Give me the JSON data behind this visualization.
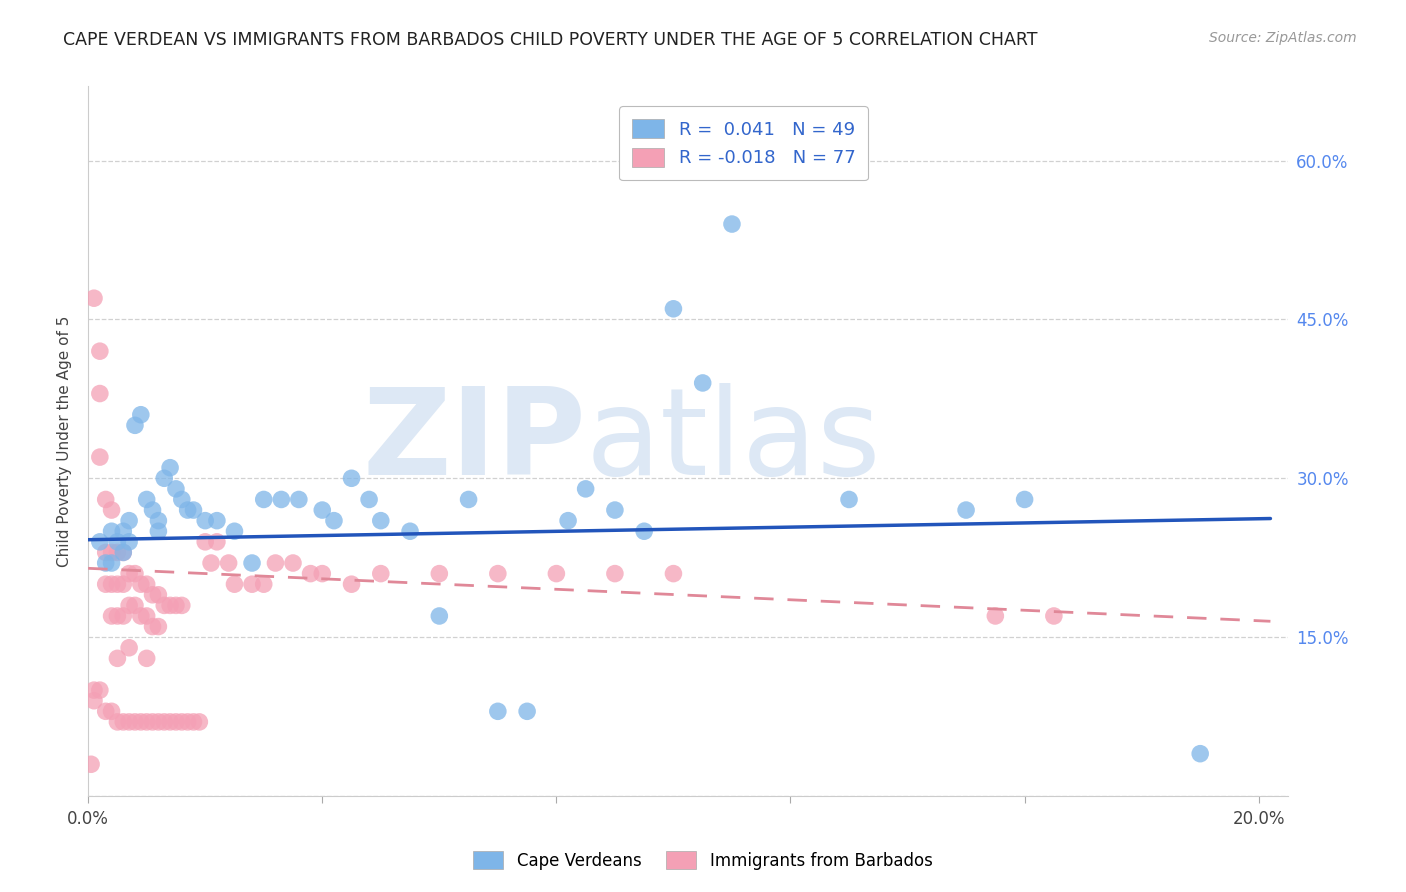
{
  "title": "CAPE VERDEAN VS IMMIGRANTS FROM BARBADOS CHILD POVERTY UNDER THE AGE OF 5 CORRELATION CHART",
  "source": "Source: ZipAtlas.com",
  "ylabel": "Child Poverty Under the Age of 5",
  "xlim": [
    0.0,
    0.205
  ],
  "ylim": [
    0.0,
    0.67
  ],
  "x_ticks": [
    0.0,
    0.04,
    0.08,
    0.12,
    0.16,
    0.2
  ],
  "y_ticks": [
    0.0,
    0.15,
    0.3,
    0.45,
    0.6
  ],
  "cape_verdean_color": "#7EB5E8",
  "barbados_color": "#F4A0B5",
  "cape_line_color": "#2255BB",
  "barb_line_color": "#E08898",
  "legend_R_cape": "0.041",
  "legend_N_cape": "49",
  "legend_R_barb": "-0.018",
  "legend_N_barb": "77",
  "cape_x": [
    0.002,
    0.003,
    0.004,
    0.004,
    0.005,
    0.006,
    0.006,
    0.007,
    0.007,
    0.008,
    0.009,
    0.01,
    0.011,
    0.012,
    0.012,
    0.013,
    0.014,
    0.015,
    0.016,
    0.017,
    0.018,
    0.02,
    0.022,
    0.025,
    0.028,
    0.03,
    0.033,
    0.036,
    0.04,
    0.042,
    0.045,
    0.048,
    0.05,
    0.055,
    0.06,
    0.065,
    0.07,
    0.075,
    0.082,
    0.085,
    0.09,
    0.095,
    0.1,
    0.105,
    0.11,
    0.13,
    0.15,
    0.16,
    0.19
  ],
  "cape_y": [
    0.24,
    0.22,
    0.22,
    0.25,
    0.24,
    0.23,
    0.25,
    0.24,
    0.26,
    0.35,
    0.36,
    0.28,
    0.27,
    0.26,
    0.25,
    0.3,
    0.31,
    0.29,
    0.28,
    0.27,
    0.27,
    0.26,
    0.26,
    0.25,
    0.22,
    0.28,
    0.28,
    0.28,
    0.27,
    0.26,
    0.3,
    0.28,
    0.26,
    0.25,
    0.17,
    0.28,
    0.08,
    0.08,
    0.26,
    0.29,
    0.27,
    0.25,
    0.46,
    0.39,
    0.54,
    0.28,
    0.27,
    0.28,
    0.04
  ],
  "barb_x": [
    0.0005,
    0.001,
    0.001,
    0.001,
    0.002,
    0.002,
    0.002,
    0.002,
    0.003,
    0.003,
    0.003,
    0.003,
    0.004,
    0.004,
    0.004,
    0.004,
    0.004,
    0.005,
    0.005,
    0.005,
    0.005,
    0.005,
    0.006,
    0.006,
    0.006,
    0.006,
    0.007,
    0.007,
    0.007,
    0.007,
    0.008,
    0.008,
    0.008,
    0.009,
    0.009,
    0.009,
    0.01,
    0.01,
    0.01,
    0.01,
    0.011,
    0.011,
    0.011,
    0.012,
    0.012,
    0.012,
    0.013,
    0.013,
    0.014,
    0.014,
    0.015,
    0.015,
    0.016,
    0.016,
    0.017,
    0.018,
    0.019,
    0.02,
    0.021,
    0.022,
    0.024,
    0.025,
    0.028,
    0.03,
    0.032,
    0.035,
    0.038,
    0.04,
    0.045,
    0.05,
    0.06,
    0.07,
    0.08,
    0.09,
    0.1,
    0.155,
    0.165
  ],
  "barb_y": [
    0.03,
    0.47,
    0.1,
    0.09,
    0.42,
    0.38,
    0.32,
    0.1,
    0.28,
    0.23,
    0.2,
    0.08,
    0.27,
    0.23,
    0.2,
    0.17,
    0.08,
    0.23,
    0.2,
    0.17,
    0.13,
    0.07,
    0.23,
    0.2,
    0.17,
    0.07,
    0.21,
    0.18,
    0.14,
    0.07,
    0.21,
    0.18,
    0.07,
    0.2,
    0.17,
    0.07,
    0.2,
    0.17,
    0.13,
    0.07,
    0.19,
    0.16,
    0.07,
    0.19,
    0.16,
    0.07,
    0.18,
    0.07,
    0.18,
    0.07,
    0.18,
    0.07,
    0.18,
    0.07,
    0.07,
    0.07,
    0.07,
    0.24,
    0.22,
    0.24,
    0.22,
    0.2,
    0.2,
    0.2,
    0.22,
    0.22,
    0.21,
    0.21,
    0.2,
    0.21,
    0.21,
    0.21,
    0.21,
    0.21,
    0.21,
    0.17,
    0.17
  ],
  "blue_line_x0": 0.0,
  "blue_line_x1": 0.202,
  "blue_line_y0": 0.242,
  "blue_line_y1": 0.262,
  "pink_line_x0": 0.0,
  "pink_line_x1": 0.202,
  "pink_line_y0": 0.215,
  "pink_line_y1": 0.165,
  "background_color": "#ffffff",
  "grid_color": "#cccccc",
  "watermark_zip": "ZIP",
  "watermark_atlas": "atlas",
  "watermark_color": "#dde8f5"
}
